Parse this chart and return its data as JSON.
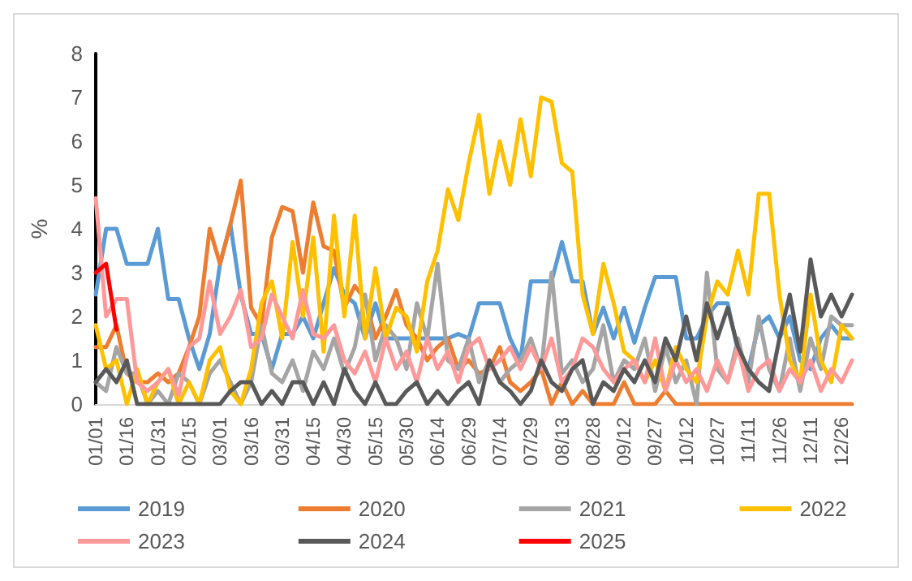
{
  "chart_data": {
    "type": "line",
    "ylabel": "%",
    "ylim": [
      0,
      8
    ],
    "yticks": [
      0,
      1,
      2,
      3,
      4,
      5,
      6,
      7,
      8
    ],
    "legend": "bottom",
    "marker": "none",
    "line_style": "solid",
    "categories": [
      "01/01",
      null,
      null,
      "01/16",
      null,
      null,
      "01/31",
      null,
      null,
      "02/15",
      null,
      null,
      "03/01",
      null,
      null,
      "03/16",
      null,
      null,
      "03/31",
      null,
      null,
      "04/15",
      null,
      null,
      "04/30",
      null,
      null,
      "05/15",
      null,
      null,
      "05/30",
      null,
      null,
      "06/14",
      null,
      null,
      "06/29",
      null,
      null,
      "07/14",
      null,
      null,
      "07/29",
      null,
      null,
      "08/13",
      null,
      null,
      "08/28",
      null,
      null,
      "09/12",
      null,
      null,
      "09/27",
      null,
      null,
      "10/12",
      null,
      null,
      "10/27",
      null,
      null,
      "11/11",
      null,
      null,
      "11/26",
      null,
      null,
      "12/11",
      null,
      null,
      "12/26",
      null
    ],
    "series": [
      {
        "name": "2019",
        "color": "#5b9bd5",
        "values": [
          2.5,
          4.0,
          4.0,
          3.2,
          3.2,
          3.2,
          4.0,
          2.4,
          2.4,
          1.5,
          0.8,
          1.6,
          3.2,
          4.1,
          2.5,
          1.6,
          1.6,
          0.8,
          1.6,
          1.6,
          2.0,
          1.5,
          2.3,
          3.1,
          2.5,
          2.3,
          1.5,
          2.3,
          1.5,
          1.5,
          1.5,
          1.5,
          1.5,
          1.5,
          1.5,
          1.6,
          1.5,
          2.3,
          2.3,
          2.3,
          1.5,
          1.0,
          2.8,
          2.8,
          2.8,
          3.7,
          2.8,
          2.8,
          1.6,
          2.2,
          1.5,
          2.2,
          1.4,
          2.2,
          2.9,
          2.9,
          2.9,
          1.5,
          1.5,
          2.0,
          2.3,
          2.3,
          1.2,
          0.8,
          1.8,
          2.0,
          1.5,
          2.0,
          1.0,
          0.8,
          1.5,
          1.8,
          1.5,
          1.5
        ]
      },
      {
        "name": "2020",
        "color": "#ed7d31",
        "values": [
          1.3,
          1.3,
          1.8,
          0.7,
          0.5,
          0.5,
          0.7,
          0.5,
          0.7,
          1.3,
          2.0,
          4.0,
          3.2,
          4.1,
          5.1,
          2.2,
          1.8,
          3.8,
          4.5,
          4.4,
          3.0,
          4.6,
          3.6,
          3.5,
          2.2,
          2.7,
          2.4,
          1.5,
          2.0,
          2.6,
          1.8,
          1.5,
          1.0,
          1.3,
          1.5,
          0.8,
          1.0,
          0.7,
          0.8,
          1.3,
          0.5,
          0.3,
          0.5,
          0.8,
          0,
          0.5,
          0,
          0.3,
          0,
          0,
          0,
          0.5,
          0,
          0,
          0,
          0.3,
          0,
          0,
          0,
          0,
          0,
          0,
          0,
          0,
          0,
          0,
          0,
          0,
          0,
          0,
          0,
          0,
          0,
          0
        ]
      },
      {
        "name": "2021",
        "color": "#a5a5a5",
        "values": [
          0.5,
          0.3,
          1.3,
          0.7,
          0.7,
          0,
          0.3,
          0,
          0.7,
          0.5,
          0,
          0.7,
          1.0,
          0.5,
          0,
          0.5,
          1.8,
          0.7,
          0.5,
          1.0,
          0.3,
          1.2,
          0.8,
          1.5,
          0.7,
          1.3,
          2.5,
          1.0,
          1.8,
          1.5,
          0.8,
          2.3,
          1.5,
          3.2,
          1.0,
          0.8,
          1.5,
          0.5,
          1.0,
          0.5,
          0.8,
          1.0,
          1.5,
          0.8,
          3.0,
          0.7,
          1.0,
          0.5,
          0.8,
          1.8,
          0.5,
          1.0,
          0.8,
          1.5,
          0.3,
          1.3,
          0.5,
          1.0,
          0,
          3.0,
          0.8,
          0.5,
          1.5,
          0.5,
          2.0,
          0.8,
          0.3,
          1.5,
          0.3,
          1.5,
          0.8,
          2.0,
          1.8,
          1.8
        ]
      },
      {
        "name": "2022",
        "color": "#ffc000",
        "values": [
          1.8,
          0.8,
          1.0,
          0,
          0.8,
          0,
          0.5,
          0.8,
          0,
          0.5,
          0,
          1.0,
          1.3,
          0.3,
          0,
          0.8,
          2.3,
          2.8,
          1.5,
          3.7,
          2.0,
          3.8,
          1.2,
          4.3,
          2.0,
          4.3,
          1.5,
          3.1,
          1.5,
          2.2,
          2.0,
          1.2,
          2.8,
          3.5,
          4.9,
          4.2,
          5.5,
          6.6,
          4.8,
          6.0,
          5.0,
          6.5,
          5.2,
          7.0,
          6.9,
          5.5,
          5.3,
          2.5,
          1.6,
          3.2,
          2.3,
          1.2,
          1.0,
          0.5,
          1.0,
          0.3,
          1.3,
          0.8,
          0.5,
          2.0,
          2.8,
          2.5,
          3.5,
          2.5,
          4.8,
          4.8,
          2.5,
          1.0,
          0.5,
          2.5,
          1.0,
          0.5,
          1.8,
          1.5
        ]
      },
      {
        "name": "2023",
        "color": "#ff9999",
        "values": [
          4.7,
          2.0,
          2.4,
          2.4,
          0.5,
          0.3,
          0.5,
          0.8,
          0.2,
          1.3,
          1.5,
          2.8,
          1.6,
          2.0,
          2.6,
          1.3,
          1.5,
          2.5,
          2.0,
          1.5,
          2.6,
          1.6,
          1.5,
          1.8,
          1.0,
          0.7,
          1.2,
          0.5,
          1.5,
          0.8,
          1.2,
          0.5,
          1.5,
          0.8,
          1.2,
          0.5,
          1.3,
          1.5,
          0.8,
          1.0,
          1.3,
          0.8,
          1.3,
          0.8,
          1.5,
          0.5,
          0.8,
          1.5,
          1.3,
          0.8,
          0.5,
          0.8,
          1.0,
          0.5,
          1.5,
          0.3,
          1.0,
          0.5,
          0.8,
          0.3,
          1.0,
          0.5,
          1.3,
          0.3,
          0.8,
          1.0,
          0.3,
          0.8,
          0.5,
          1.0,
          0.3,
          0.8,
          0.5,
          1.0
        ]
      },
      {
        "name": "2024",
        "color": "#595959",
        "values": [
          0.5,
          0.8,
          0.5,
          1.0,
          0,
          0,
          0,
          0,
          0,
          0,
          0,
          0,
          0,
          0.3,
          0.5,
          0.5,
          0,
          0.3,
          0,
          0.5,
          0.5,
          0,
          0.5,
          0,
          0.8,
          0.3,
          0,
          0.5,
          0,
          0,
          0.3,
          0.5,
          0,
          0.3,
          0,
          0.3,
          0.5,
          0,
          1.0,
          0.5,
          0.3,
          0,
          0.3,
          1.0,
          0.5,
          0.3,
          0.8,
          1.0,
          0,
          0.5,
          0.3,
          0.8,
          0.5,
          1.0,
          0.5,
          1.5,
          1.0,
          2.0,
          1.0,
          2.3,
          1.5,
          2.2,
          1.3,
          0.8,
          0.5,
          0.3,
          1.5,
          2.5,
          1.2,
          3.3,
          2.0,
          2.5,
          2.0,
          2.5
        ]
      },
      {
        "name": "2025",
        "color": "#ff0000",
        "values": [
          3.0,
          3.2,
          1.7,
          null,
          null,
          null,
          null,
          null,
          null,
          null,
          null,
          null,
          null,
          null,
          null,
          null,
          null,
          null,
          null,
          null,
          null,
          null,
          null,
          null,
          null,
          null,
          null,
          null,
          null,
          null,
          null,
          null,
          null,
          null,
          null,
          null,
          null,
          null,
          null,
          null,
          null,
          null,
          null,
          null,
          null,
          null,
          null,
          null,
          null,
          null,
          null,
          null,
          null,
          null,
          null,
          null,
          null,
          null,
          null,
          null,
          null,
          null,
          null,
          null,
          null,
          null,
          null,
          null,
          null,
          null,
          null,
          null,
          null,
          null
        ]
      }
    ]
  }
}
